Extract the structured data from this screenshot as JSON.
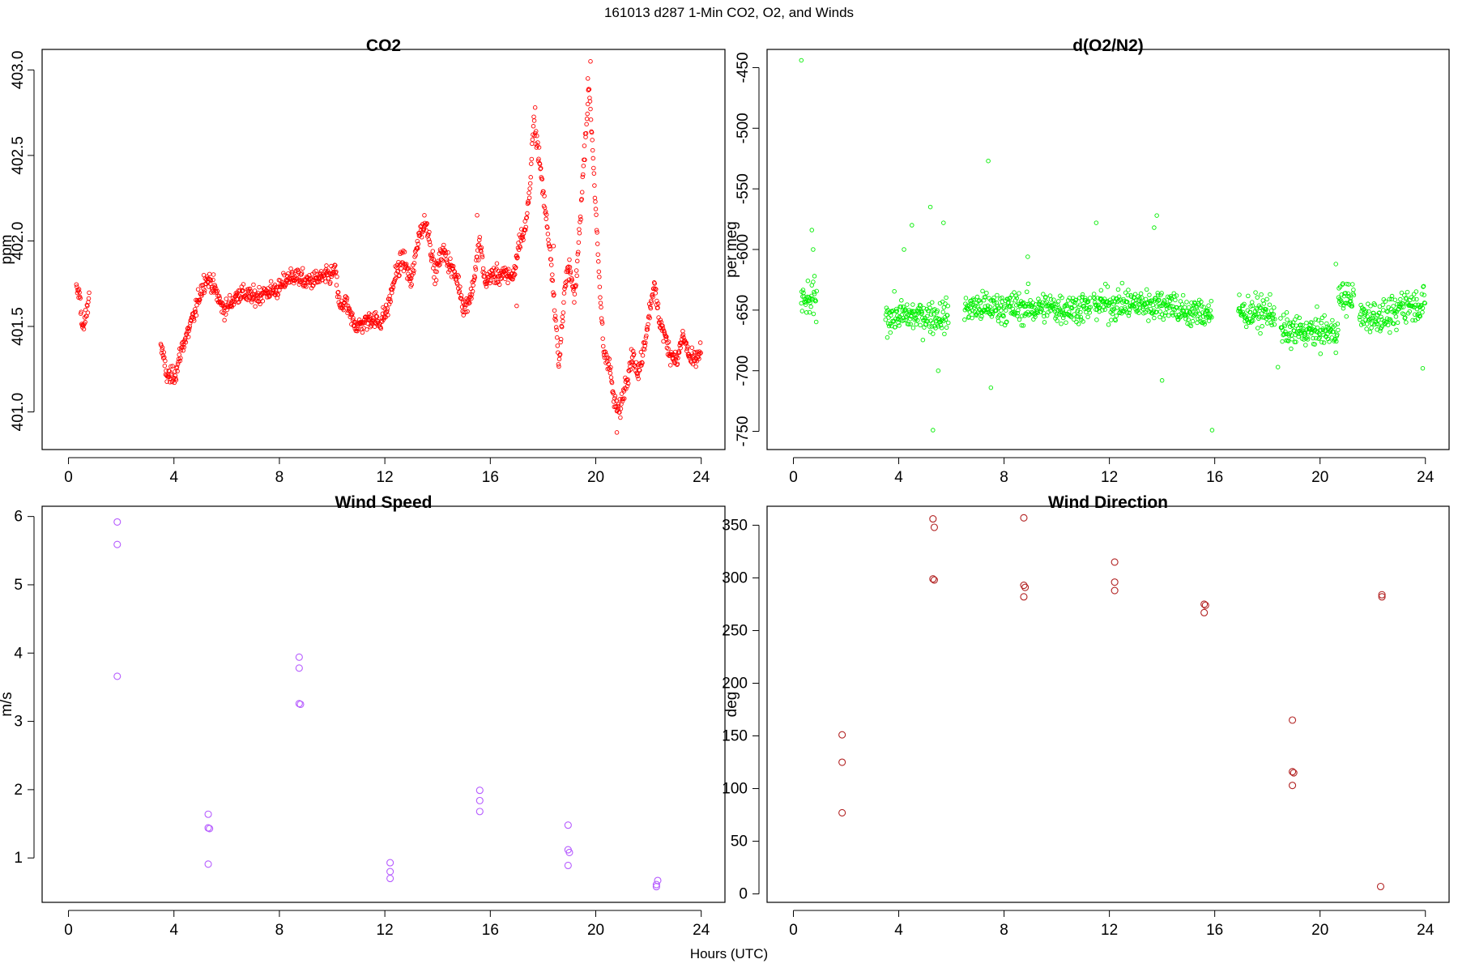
{
  "page_title": "161013   d287   1-Min CO2, O2, and Winds",
  "xlabel": "Hours (UTC)",
  "chart_data": [
    {
      "id": "co2",
      "type": "scatter",
      "title": "CO2",
      "xlabel": "",
      "ylabel": "ppm",
      "xlim": [
        -1,
        24.9
      ],
      "ylim": [
        400.78,
        403.12
      ],
      "xticks": [
        0,
        4,
        8,
        12,
        16,
        20,
        24
      ],
      "yticks": [
        401.0,
        401.5,
        402.0,
        402.5,
        403.0
      ],
      "ytick_labels": [
        "401.0",
        "401.5",
        "402.0",
        "402.5",
        "403.0"
      ],
      "ytick_rotated": true,
      "color": "#ff0000",
      "marker_size": "small",
      "anchors": [
        [
          0.3,
          401.71
        ],
        [
          0.45,
          401.68
        ],
        [
          0.5,
          401.52
        ],
        [
          0.55,
          401.47
        ],
        [
          0.7,
          401.6
        ],
        [
          0.8,
          401.7
        ],
        [
          3.5,
          401.4
        ],
        [
          3.6,
          401.32
        ],
        [
          3.7,
          401.22
        ],
        [
          3.9,
          401.2
        ],
        [
          4.1,
          401.24
        ],
        [
          4.3,
          401.38
        ],
        [
          4.5,
          401.45
        ],
        [
          4.8,
          401.58
        ],
        [
          5.0,
          401.7
        ],
        [
          5.2,
          401.78
        ],
        [
          5.4,
          401.76
        ],
        [
          5.6,
          401.7
        ],
        [
          5.8,
          401.62
        ],
        [
          5.95,
          401.6
        ],
        [
          6.5,
          401.7
        ],
        [
          7.0,
          401.67
        ],
        [
          7.5,
          401.7
        ],
        [
          8.0,
          401.72
        ],
        [
          8.3,
          401.78
        ],
        [
          8.6,
          401.8
        ],
        [
          9.0,
          401.76
        ],
        [
          9.5,
          401.78
        ],
        [
          10.0,
          401.8
        ],
        [
          10.1,
          401.84
        ],
        [
          10.3,
          401.6
        ],
        [
          10.5,
          401.65
        ],
        [
          10.7,
          401.55
        ],
        [
          11.0,
          401.5
        ],
        [
          11.5,
          401.55
        ],
        [
          11.8,
          401.52
        ],
        [
          12.1,
          401.6
        ],
        [
          12.4,
          401.8
        ],
        [
          12.7,
          401.9
        ],
        [
          13.0,
          401.75
        ],
        [
          13.3,
          402.05
        ],
        [
          13.6,
          402.1
        ],
        [
          13.9,
          401.8
        ],
        [
          14.2,
          401.95
        ],
        [
          14.5,
          401.85
        ],
        [
          14.8,
          401.75
        ],
        [
          15.0,
          401.6
        ],
        [
          15.3,
          401.7
        ],
        [
          15.6,
          402.0
        ],
        [
          15.8,
          401.75
        ],
        [
          16.0,
          401.8
        ],
        [
          16.9,
          401.8
        ],
        [
          17.1,
          402.0
        ],
        [
          17.3,
          402.05
        ],
        [
          17.5,
          402.3
        ],
        [
          17.65,
          402.7
        ],
        [
          17.8,
          402.55
        ],
        [
          18.3,
          401.9
        ],
        [
          18.5,
          401.5
        ],
        [
          18.6,
          401.25
        ],
        [
          18.8,
          401.7
        ],
        [
          19.0,
          401.85
        ],
        [
          19.2,
          401.65
        ],
        [
          19.4,
          402.1
        ],
        [
          19.6,
          402.6
        ],
        [
          19.75,
          402.9
        ],
        [
          19.9,
          402.5
        ],
        [
          20.1,
          401.85
        ],
        [
          20.3,
          401.35
        ],
        [
          20.5,
          401.3
        ],
        [
          20.7,
          401.05
        ],
        [
          20.9,
          401.0
        ],
        [
          21.1,
          401.15
        ],
        [
          21.4,
          401.35
        ],
        [
          21.6,
          401.2
        ],
        [
          21.9,
          401.45
        ],
        [
          22.2,
          401.75
        ],
        [
          22.4,
          401.55
        ],
        [
          22.6,
          401.45
        ],
        [
          22.8,
          401.35
        ],
        [
          23.1,
          401.3
        ],
        [
          23.3,
          401.45
        ],
        [
          23.6,
          401.3
        ],
        [
          23.8,
          401.3
        ],
        [
          24.0,
          401.37
        ]
      ],
      "highlight_points": [
        [
          17.7,
          402.78
        ],
        [
          19.8,
          403.05
        ],
        [
          19.7,
          402.95
        ],
        [
          18.4,
          401.97
        ],
        [
          20.8,
          400.88
        ],
        [
          17.0,
          401.62
        ],
        [
          13.5,
          402.15
        ],
        [
          15.5,
          402.15
        ]
      ]
    },
    {
      "id": "o2",
      "type": "scatter",
      "title": "d(O2/N2)",
      "xlabel": "",
      "ylabel": "per meg",
      "xlim": [
        -1,
        24.9
      ],
      "ylim": [
        -765,
        -435
      ],
      "xticks": [
        0,
        4,
        8,
        12,
        16,
        20,
        24
      ],
      "yticks": [
        -450,
        -500,
        -550,
        -600,
        -650,
        -700,
        -750
      ],
      "ytick_labels": [
        "-450",
        "-500",
        "-550",
        "-600",
        "-650",
        "-700",
        "-750"
      ],
      "ytick_rotated": true,
      "color": "#00ee00",
      "marker_size": "small",
      "segments": [
        [
          0.3,
          0.9,
          -643
        ],
        [
          3.5,
          5.9,
          -655
        ],
        [
          6.5,
          11.3,
          -648
        ],
        [
          11.4,
          14.6,
          -645
        ],
        [
          14.6,
          15.9,
          -652
        ],
        [
          16.9,
          18.3,
          -652
        ],
        [
          18.5,
          20.7,
          -668
        ],
        [
          20.7,
          21.3,
          -640
        ],
        [
          21.5,
          23.0,
          -655
        ],
        [
          23.0,
          24.0,
          -645
        ]
      ],
      "outliers": [
        [
          0.3,
          -444
        ],
        [
          0.7,
          -584
        ],
        [
          0.75,
          -600
        ],
        [
          0.8,
          -622
        ],
        [
          4.5,
          -580
        ],
        [
          5.2,
          -565
        ],
        [
          5.7,
          -578
        ],
        [
          5.3,
          -749
        ],
        [
          7.4,
          -527
        ],
        [
          7.5,
          -714
        ],
        [
          8.9,
          -606
        ],
        [
          11.5,
          -578
        ],
        [
          13.8,
          -572
        ],
        [
          13.7,
          -582
        ],
        [
          15.9,
          -749
        ],
        [
          14.0,
          -708
        ],
        [
          18.4,
          -697
        ],
        [
          20.6,
          -612
        ],
        [
          23.9,
          -698
        ],
        [
          4.2,
          -600
        ],
        [
          5.5,
          -700
        ]
      ]
    },
    {
      "id": "wind_speed",
      "type": "scatter",
      "title": "Wind Speed",
      "xlabel": "",
      "ylabel": "m/s",
      "xlim": [
        -1,
        24.9
      ],
      "ylim": [
        0.35,
        6.15
      ],
      "xticks": [
        0,
        4,
        8,
        12,
        16,
        20,
        24
      ],
      "yticks": [
        1,
        2,
        3,
        4,
        5,
        6
      ],
      "ytick_labels": [
        "1",
        "2",
        "3",
        "4",
        "5",
        "6"
      ],
      "ytick_rotated": false,
      "color": "#b65cff",
      "marker_size": "large",
      "points": [
        [
          1.85,
          5.92
        ],
        [
          1.85,
          5.59
        ],
        [
          1.85,
          3.66
        ],
        [
          5.3,
          1.64
        ],
        [
          5.3,
          1.44
        ],
        [
          5.35,
          1.43
        ],
        [
          5.3,
          0.91
        ],
        [
          8.75,
          3.94
        ],
        [
          8.75,
          3.78
        ],
        [
          8.75,
          3.26
        ],
        [
          8.8,
          3.25
        ],
        [
          12.2,
          0.93
        ],
        [
          12.2,
          0.8
        ],
        [
          12.2,
          0.7
        ],
        [
          15.6,
          1.99
        ],
        [
          15.6,
          1.84
        ],
        [
          15.6,
          1.68
        ],
        [
          18.95,
          1.48
        ],
        [
          18.95,
          1.12
        ],
        [
          19.0,
          1.08
        ],
        [
          18.95,
          0.89
        ],
        [
          22.35,
          0.67
        ],
        [
          22.3,
          0.61
        ],
        [
          22.3,
          0.58
        ]
      ]
    },
    {
      "id": "wind_direction",
      "type": "scatter",
      "title": "Wind Direction",
      "xlabel": "",
      "ylabel": "deg",
      "xlim": [
        -1,
        24.9
      ],
      "ylim": [
        -8,
        368
      ],
      "xticks": [
        0,
        4,
        8,
        12,
        16,
        20,
        24
      ],
      "yticks": [
        0,
        50,
        100,
        150,
        200,
        250,
        300,
        350
      ],
      "ytick_labels": [
        "0",
        "50",
        "100",
        "150",
        "200",
        "250",
        "300",
        "350"
      ],
      "ytick_rotated": false,
      "color": "#b22222",
      "marker_size": "large",
      "points": [
        [
          1.85,
          151
        ],
        [
          1.85,
          125
        ],
        [
          1.85,
          77
        ],
        [
          5.3,
          356
        ],
        [
          5.35,
          348
        ],
        [
          5.3,
          299
        ],
        [
          5.35,
          298
        ],
        [
          8.75,
          357
        ],
        [
          8.75,
          293
        ],
        [
          8.8,
          291
        ],
        [
          8.75,
          282
        ],
        [
          12.2,
          315
        ],
        [
          12.2,
          296
        ],
        [
          12.2,
          288
        ],
        [
          15.6,
          275
        ],
        [
          15.65,
          274
        ],
        [
          15.6,
          267
        ],
        [
          18.95,
          165
        ],
        [
          18.95,
          116
        ],
        [
          19.0,
          115
        ],
        [
          18.95,
          103
        ],
        [
          22.35,
          284
        ],
        [
          22.35,
          282
        ],
        [
          22.3,
          7
        ]
      ]
    }
  ]
}
